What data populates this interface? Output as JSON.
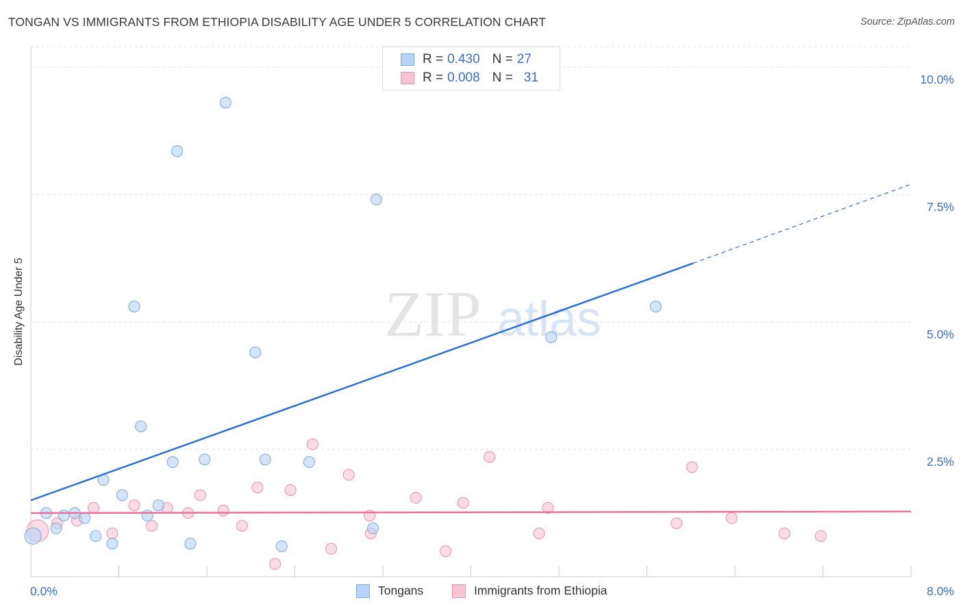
{
  "header": {
    "title": "TONGAN VS IMMIGRANTS FROM ETHIOPIA DISABILITY AGE UNDER 5 CORRELATION CHART",
    "source": "Source: ZipAtlas.com"
  },
  "colors": {
    "tongan_fill": "#b8d3f5",
    "tongan_stroke": "#7aa8e0",
    "tongan_line": "#2a6fd0",
    "ethiopia_fill": "#f8c4d4",
    "ethiopia_stroke": "#e890ae",
    "ethiopia_line": "#e8709a",
    "grid": "#e2e2e2",
    "axis_text": "#3a6fc4"
  },
  "legend_top": {
    "rows": [
      {
        "r_label": "R =",
        "r_value": "0.430",
        "n_label": "N =",
        "n_value": "27"
      },
      {
        "r_label": "R =",
        "r_value": "0.008",
        "n_label": "N =",
        "n_value": "31"
      }
    ]
  },
  "watermark": {
    "zip": "ZIP",
    "atlas": "atlas"
  },
  "chart_data": {
    "type": "scatter",
    "title": "TONGAN VS IMMIGRANTS FROM ETHIOPIA DISABILITY AGE UNDER 5 CORRELATION CHART",
    "xlabel": "",
    "ylabel": "Disability Age Under 5",
    "xlim": [
      0,
      8
    ],
    "ylim": [
      0,
      10.4
    ],
    "x_tick_labels": [
      "0.0%",
      "8.0%"
    ],
    "y_ticks": [
      2.5,
      5.0,
      7.5,
      10.0
    ],
    "y_tick_labels": [
      "2.5%",
      "5.0%",
      "7.5%",
      "10.0%"
    ],
    "grid": true,
    "series": [
      {
        "name": "Tongans",
        "r": 0.43,
        "n": 27,
        "points": [
          [
            0.02,
            0.8
          ],
          [
            0.14,
            1.25
          ],
          [
            0.23,
            0.95
          ],
          [
            0.3,
            1.2
          ],
          [
            0.4,
            1.25
          ],
          [
            0.49,
            1.15
          ],
          [
            0.59,
            0.8
          ],
          [
            0.66,
            1.9
          ],
          [
            0.74,
            0.65
          ],
          [
            0.83,
            1.6
          ],
          [
            0.94,
            5.3
          ],
          [
            1.0,
            2.95
          ],
          [
            1.06,
            1.2
          ],
          [
            1.16,
            1.4
          ],
          [
            1.29,
            2.25
          ],
          [
            1.33,
            8.35
          ],
          [
            1.45,
            0.65
          ],
          [
            1.58,
            2.3
          ],
          [
            1.77,
            9.3
          ],
          [
            2.04,
            4.4
          ],
          [
            2.13,
            2.3
          ],
          [
            2.28,
            0.6
          ],
          [
            2.53,
            2.25
          ],
          [
            3.11,
            0.95
          ],
          [
            3.14,
            7.4
          ],
          [
            4.73,
            4.7
          ],
          [
            5.68,
            5.3
          ]
        ],
        "trend": {
          "x0": 0.0,
          "y0": 1.5,
          "x1": 6.02,
          "y1": 6.15,
          "dash_x1": 8.0,
          "dash_y1": 7.7
        }
      },
      {
        "name": "Immigrants from Ethiopia",
        "r": 0.008,
        "n": 31,
        "points": [
          [
            0.06,
            0.9
          ],
          [
            0.24,
            1.05
          ],
          [
            0.42,
            1.1
          ],
          [
            0.57,
            1.35
          ],
          [
            0.74,
            0.85
          ],
          [
            0.94,
            1.4
          ],
          [
            1.1,
            1.0
          ],
          [
            1.24,
            1.35
          ],
          [
            1.43,
            1.25
          ],
          [
            1.54,
            1.6
          ],
          [
            1.75,
            1.3
          ],
          [
            1.92,
            1.0
          ],
          [
            2.06,
            1.75
          ],
          [
            2.22,
            0.25
          ],
          [
            2.36,
            1.7
          ],
          [
            2.56,
            2.6
          ],
          [
            2.73,
            0.55
          ],
          [
            2.89,
            2.0
          ],
          [
            3.08,
            1.2
          ],
          [
            3.09,
            0.85
          ],
          [
            3.5,
            1.55
          ],
          [
            3.77,
            0.5
          ],
          [
            3.93,
            1.45
          ],
          [
            4.17,
            2.35
          ],
          [
            4.62,
            0.85
          ],
          [
            4.7,
            1.35
          ],
          [
            5.87,
            1.05
          ],
          [
            6.01,
            2.15
          ],
          [
            6.37,
            1.15
          ],
          [
            6.85,
            0.85
          ],
          [
            7.18,
            0.8
          ]
        ],
        "trend": {
          "x0": 0.0,
          "y0": 1.25,
          "x1": 8.0,
          "y1": 1.28
        }
      }
    ]
  },
  "legend_bottom": {
    "items": [
      {
        "label": "Tongans"
      },
      {
        "label": "Immigrants from Ethiopia"
      }
    ]
  }
}
